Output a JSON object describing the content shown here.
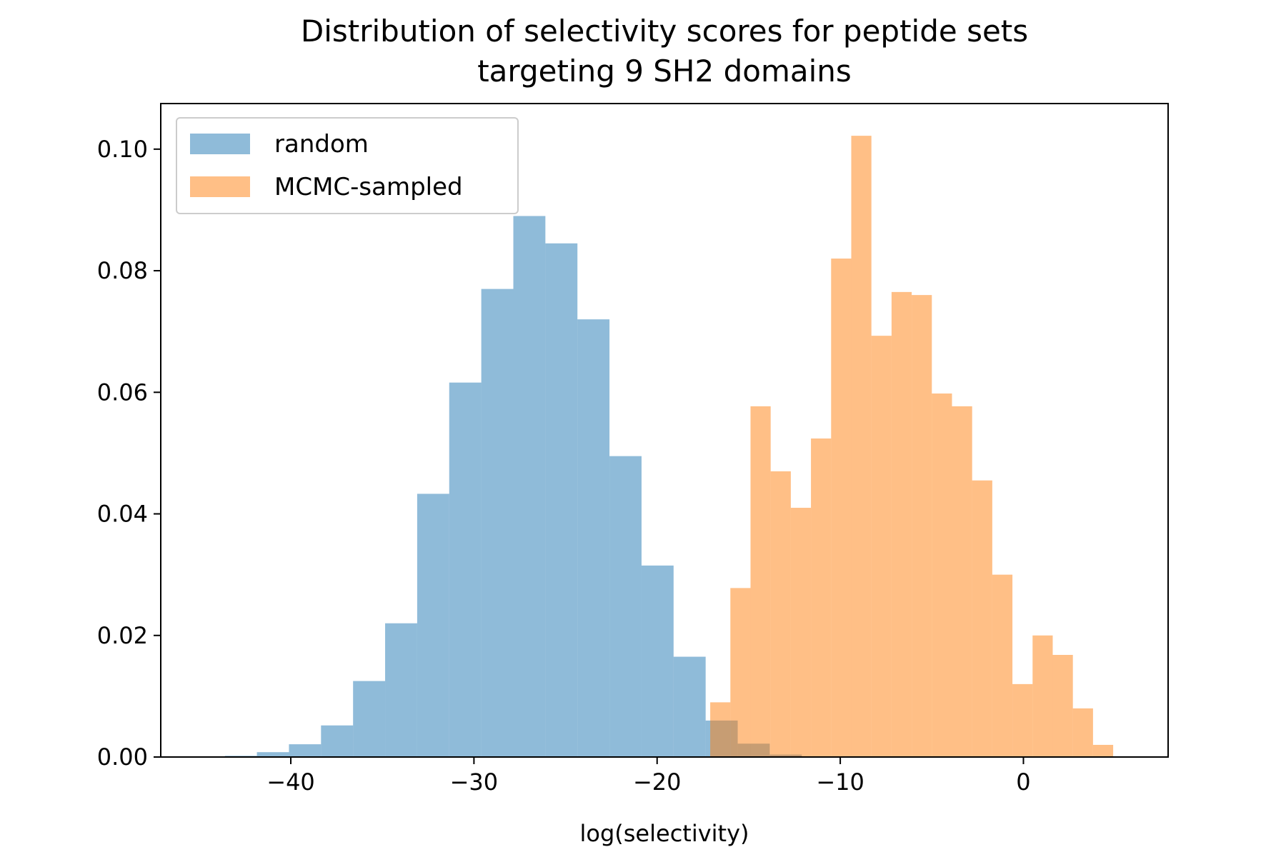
{
  "chart_data": {
    "type": "bar",
    "title_lines": [
      "Distribution of selectivity scores for peptide sets",
      "targeting 9 SH2 domains"
    ],
    "xlabel": "log(selectivity)",
    "ylabel": "",
    "xlim": [
      -47.1,
      7.9
    ],
    "ylim": [
      0,
      0.1075
    ],
    "xticks": [
      -40,
      -30,
      -20,
      -10,
      0
    ],
    "xtick_labels": [
      "−40",
      "−30",
      "−20",
      "−10",
      "0"
    ],
    "yticks": [
      0,
      0.02,
      0.04,
      0.06,
      0.08,
      0.1
    ],
    "ytick_labels": [
      "0.00",
      "0.02",
      "0.04",
      "0.06",
      "0.08",
      "0.10"
    ],
    "grid": false,
    "legend_position": "top-left",
    "series": [
      {
        "name": "random",
        "color": "#1f77b4",
        "opacity": 0.5,
        "bin_edges": [
          -43.6,
          -41.85,
          -40.1,
          -38.35,
          -36.6,
          -34.85,
          -33.1,
          -31.35,
          -29.6,
          -27.85,
          -26.1,
          -24.35,
          -22.6,
          -20.85,
          -19.1,
          -17.35,
          -15.6,
          -13.85,
          -12.1
        ],
        "values": [
          0.0002,
          0.0008,
          0.0021,
          0.0052,
          0.0125,
          0.022,
          0.0433,
          0.0616,
          0.077,
          0.089,
          0.0845,
          0.072,
          0.0495,
          0.0315,
          0.0165,
          0.006,
          0.0022,
          0.0004
        ]
      },
      {
        "name": "MCMC-sampled",
        "color": "#ff7f0e",
        "opacity": 0.5,
        "bin_edges": [
          -17.1,
          -16.0,
          -14.9,
          -13.8,
          -12.7,
          -11.6,
          -10.5,
          -9.4,
          -8.3,
          -7.2,
          -6.1,
          -5.0,
          -3.9,
          -2.8,
          -1.7,
          -0.6,
          0.5,
          1.6,
          2.7,
          3.8,
          4.9
        ],
        "values": [
          0.009,
          0.0278,
          0.0577,
          0.047,
          0.041,
          0.0524,
          0.082,
          0.1022,
          0.0693,
          0.0765,
          0.076,
          0.0598,
          0.0577,
          0.0455,
          0.03,
          0.012,
          0.02,
          0.0168,
          0.008,
          0.002
        ]
      }
    ]
  }
}
